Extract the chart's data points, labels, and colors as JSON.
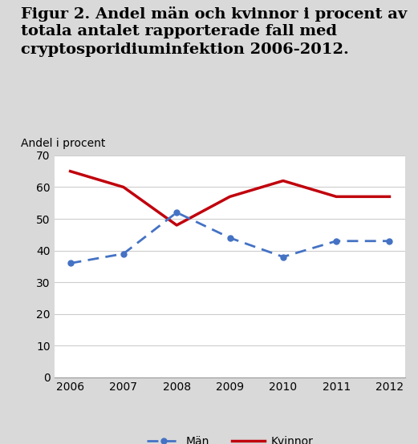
{
  "title_line1": "Figur 2. Andel män och kvinnor i procent av",
  "title_line2": "totala antalet rapporterade fall med",
  "title_line3": "cryptosporidiuminfektion 2006-2012.",
  "ylabel": "Andel i procent",
  "years": [
    2006,
    2007,
    2008,
    2009,
    2010,
    2011,
    2012
  ],
  "man_values": [
    36,
    39,
    52,
    44,
    38,
    43,
    43
  ],
  "kvinnor_values": [
    65,
    60,
    48,
    57,
    62,
    57,
    57
  ],
  "man_color": "#4472C4",
  "kvinnor_color": "#C0000C",
  "background_color": "#D9D9D9",
  "plot_bg_color": "#FFFFFF",
  "ylim": [
    0,
    70
  ],
  "yticks": [
    0,
    10,
    20,
    30,
    40,
    50,
    60,
    70
  ],
  "title_fontsize": 14,
  "ylabel_fontsize": 10,
  "tick_fontsize": 10,
  "legend_man": "Män",
  "legend_kvinnor": "Kvinnor",
  "legend_fontsize": 10,
  "grid_color": "#CCCCCC"
}
